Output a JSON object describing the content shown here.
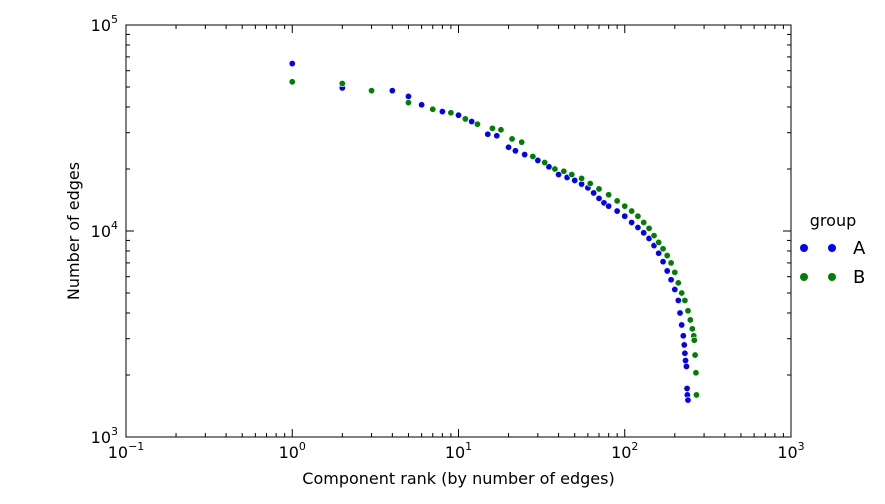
{
  "chart_data": {
    "type": "scatter",
    "xlabel": "Component rank (by number of edges)",
    "ylabel": "Number of edges",
    "xscale": "log",
    "yscale": "log",
    "xlim": [
      0.1,
      1000
    ],
    "ylim": [
      1000,
      100000
    ],
    "grid": false,
    "legend_title": "group",
    "legend_position": "right",
    "x_ticks": [
      {
        "value": 0.1,
        "base": "10",
        "exp": "−1"
      },
      {
        "value": 1,
        "base": "10",
        "exp": "0"
      },
      {
        "value": 10,
        "base": "10",
        "exp": "1"
      },
      {
        "value": 100,
        "base": "10",
        "exp": "2"
      },
      {
        "value": 1000,
        "base": "10",
        "exp": "3"
      }
    ],
    "y_ticks": [
      {
        "value": 1000,
        "base": "10",
        "exp": "3"
      },
      {
        "value": 10000,
        "base": "10",
        "exp": "4"
      },
      {
        "value": 100000,
        "base": "10",
        "exp": "5"
      }
    ],
    "series": [
      {
        "name": "A",
        "color": "#0000ff",
        "points": [
          [
            1,
            65000
          ],
          [
            2,
            49500
          ],
          [
            4,
            48000
          ],
          [
            5,
            45000
          ],
          [
            6,
            41000
          ],
          [
            8,
            38000
          ],
          [
            10,
            36500
          ],
          [
            12,
            34000
          ],
          [
            15,
            29500
          ],
          [
            17,
            29000
          ],
          [
            20,
            25500
          ],
          [
            22,
            24500
          ],
          [
            25,
            23500
          ],
          [
            30,
            22000
          ],
          [
            35,
            20500
          ],
          [
            40,
            18800
          ],
          [
            45,
            18200
          ],
          [
            50,
            17600
          ],
          [
            55,
            16900
          ],
          [
            60,
            16200
          ],
          [
            65,
            15300
          ],
          [
            70,
            14400
          ],
          [
            75,
            13700
          ],
          [
            80,
            13200
          ],
          [
            90,
            12500
          ],
          [
            100,
            11800
          ],
          [
            110,
            11000
          ],
          [
            120,
            10400
          ],
          [
            130,
            9800
          ],
          [
            140,
            9200
          ],
          [
            150,
            8500
          ],
          [
            160,
            7800
          ],
          [
            170,
            7100
          ],
          [
            180,
            6400
          ],
          [
            190,
            5800
          ],
          [
            200,
            5200
          ],
          [
            210,
            4600
          ],
          [
            215,
            4000
          ],
          [
            220,
            3500
          ],
          [
            225,
            3100
          ],
          [
            228,
            2800
          ],
          [
            230,
            2550
          ],
          [
            232,
            2350
          ],
          [
            235,
            2200
          ],
          [
            237,
            1720
          ],
          [
            238,
            1600
          ],
          [
            240,
            1510
          ]
        ]
      },
      {
        "name": "B",
        "color": "#008000",
        "points": [
          [
            1,
            53000
          ],
          [
            2,
            52000
          ],
          [
            3,
            48000
          ],
          [
            5,
            42000
          ],
          [
            7,
            39000
          ],
          [
            9,
            37500
          ],
          [
            11,
            35000
          ],
          [
            13,
            33000
          ],
          [
            16,
            31500
          ],
          [
            18,
            31000
          ],
          [
            21,
            28000
          ],
          [
            24,
            27000
          ],
          [
            28,
            23000
          ],
          [
            33,
            21500
          ],
          [
            38,
            20000
          ],
          [
            43,
            19500
          ],
          [
            48,
            18800
          ],
          [
            55,
            18000
          ],
          [
            62,
            17000
          ],
          [
            70,
            16000
          ],
          [
            80,
            15000
          ],
          [
            90,
            14000
          ],
          [
            100,
            13200
          ],
          [
            110,
            12500
          ],
          [
            120,
            11800
          ],
          [
            130,
            11000
          ],
          [
            140,
            10300
          ],
          [
            150,
            9500
          ],
          [
            160,
            8800
          ],
          [
            170,
            8200
          ],
          [
            180,
            7600
          ],
          [
            190,
            7000
          ],
          [
            200,
            6300
          ],
          [
            210,
            5600
          ],
          [
            220,
            5000
          ],
          [
            230,
            4600
          ],
          [
            240,
            4100
          ],
          [
            248,
            3700
          ],
          [
            255,
            3350
          ],
          [
            260,
            3100
          ],
          [
            262,
            2950
          ],
          [
            265,
            2500
          ],
          [
            268,
            2050
          ],
          [
            270,
            1600
          ]
        ]
      }
    ]
  }
}
